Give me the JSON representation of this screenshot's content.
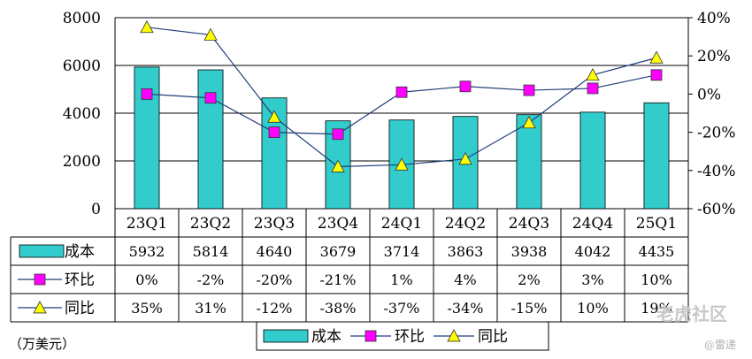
{
  "chart_data": {
    "type": "bar",
    "categories": [
      "23Q1",
      "23Q2",
      "23Q3",
      "23Q4",
      "24Q1",
      "24Q2",
      "24Q3",
      "24Q4",
      "25Q1"
    ],
    "series": [
      {
        "name": "成本",
        "type": "bar",
        "axis": "left",
        "values": [
          5932,
          5814,
          4640,
          3679,
          3714,
          3863,
          3938,
          4042,
          4435
        ]
      },
      {
        "name": "环比",
        "type": "line",
        "axis": "right",
        "marker": "square",
        "values": [
          0,
          -2,
          -20,
          -21,
          1,
          4,
          2,
          3,
          10
        ]
      },
      {
        "name": "同比",
        "type": "line",
        "axis": "right",
        "marker": "triangle",
        "values": [
          35,
          31,
          -12,
          -38,
          -37,
          -34,
          -15,
          10,
          19
        ]
      }
    ],
    "table_rows": [
      {
        "label": "成本",
        "cells": [
          "5932",
          "5814",
          "4640",
          "3679",
          "3714",
          "3863",
          "3938",
          "4042",
          "4435"
        ]
      },
      {
        "label": "环比",
        "cells": [
          "0%",
          "-2%",
          "-20%",
          "-21%",
          "1%",
          "4%",
          "2%",
          "3%",
          "10%"
        ]
      },
      {
        "label": "同比",
        "cells": [
          "35%",
          "31%",
          "-12%",
          "-38%",
          "-37%",
          "-34%",
          "-15%",
          "10%",
          "19%"
        ]
      }
    ],
    "y_left": {
      "min": 0,
      "max": 8000,
      "ticks": [
        "0",
        "2000",
        "4000",
        "6000",
        "8000"
      ]
    },
    "y_right": {
      "min": -60,
      "max": 40,
      "ticks": [
        "-60%",
        "-40%",
        "-20%",
        "0%",
        "20%",
        "40%"
      ]
    },
    "unit_label": "（万美元）",
    "legend": [
      "成本",
      "环比",
      "同比"
    ],
    "legend_position": "bottom",
    "grid": true
  },
  "colors": {
    "bar": "#33CCCC",
    "line": "#1F3D7A",
    "square_marker": "#FF00FF",
    "triangle_marker": "#FFFF00"
  },
  "watermark": {
    "main": "老虎社区",
    "sub": "@雷递"
  }
}
